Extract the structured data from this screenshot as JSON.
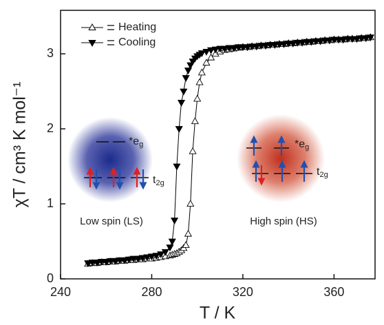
{
  "chart_data": {
    "type": "line",
    "x_label": "T / K",
    "y_label": "χT / cm³ K mol⁻¹",
    "x": [
      252,
      254,
      256,
      258,
      260,
      262,
      264,
      266,
      268,
      270,
      272,
      274,
      276,
      278,
      280,
      282,
      284,
      286,
      288,
      289,
      290,
      291,
      292,
      293,
      294,
      295,
      296,
      297,
      298,
      299,
      300,
      301,
      302,
      304,
      306,
      308,
      310,
      312,
      314,
      316,
      318,
      320,
      322,
      324,
      326,
      328,
      330,
      332,
      334,
      336,
      338,
      340,
      342,
      344,
      346,
      348,
      350,
      352,
      354,
      356,
      358,
      360,
      362,
      364,
      366,
      368,
      370,
      372,
      374,
      376
    ],
    "series": [
      {
        "name": "Heating",
        "color": "#000000",
        "marker": "triangle-up-open",
        "values": [
          0.2,
          0.21,
          0.21,
          0.22,
          0.22,
          0.23,
          0.23,
          0.24,
          0.24,
          0.25,
          0.25,
          0.26,
          0.26,
          0.27,
          0.27,
          0.28,
          0.29,
          0.3,
          0.31,
          0.32,
          0.33,
          0.34,
          0.36,
          0.38,
          0.41,
          0.45,
          0.6,
          1.0,
          1.7,
          2.1,
          2.4,
          2.62,
          2.75,
          2.88,
          2.95,
          3.0,
          3.03,
          3.05,
          3.06,
          3.07,
          3.08,
          3.09,
          3.09,
          3.1,
          3.1,
          3.11,
          3.11,
          3.12,
          3.12,
          3.13,
          3.13,
          3.14,
          3.14,
          3.15,
          3.15,
          3.16,
          3.16,
          3.17,
          3.17,
          3.18,
          3.18,
          3.19,
          3.19,
          3.19,
          3.2,
          3.2,
          3.2,
          3.21,
          3.21,
          3.22
        ]
      },
      {
        "name": "Cooling",
        "color": "#000000",
        "marker": "triangle-down-filled",
        "values": [
          0.21,
          0.22,
          0.22,
          0.23,
          0.23,
          0.24,
          0.24,
          0.25,
          0.25,
          0.26,
          0.27,
          0.27,
          0.28,
          0.29,
          0.3,
          0.31,
          0.33,
          0.36,
          0.42,
          0.5,
          0.78,
          1.5,
          2.0,
          2.35,
          2.5,
          2.68,
          2.78,
          2.85,
          2.9,
          2.94,
          2.97,
          2.99,
          3.01,
          3.03,
          3.05,
          3.06,
          3.07,
          3.07,
          3.08,
          3.08,
          3.09,
          3.09,
          3.09,
          3.1,
          3.1,
          3.11,
          3.11,
          3.12,
          3.12,
          3.13,
          3.13,
          3.14,
          3.14,
          3.15,
          3.15,
          3.16,
          3.16,
          3.17,
          3.17,
          3.18,
          3.18,
          3.19,
          3.19,
          3.19,
          3.2,
          3.2,
          3.2,
          3.21,
          3.21,
          3.22
        ]
      }
    ],
    "xlim": [
      240,
      378
    ],
    "xticks": [
      240,
      280,
      320,
      360
    ],
    "ylim": [
      0,
      3.58
    ],
    "yticks": [
      0,
      1,
      2,
      3
    ],
    "grid": false,
    "legend": "top-left",
    "annotations": {
      "low_spin": "Low spin (LS)",
      "high_spin": "High spin (HS)",
      "eg": {
        "main": "*e",
        "sub": "g"
      },
      "t2g": {
        "main": "t",
        "sub": "2g"
      }
    }
  }
}
